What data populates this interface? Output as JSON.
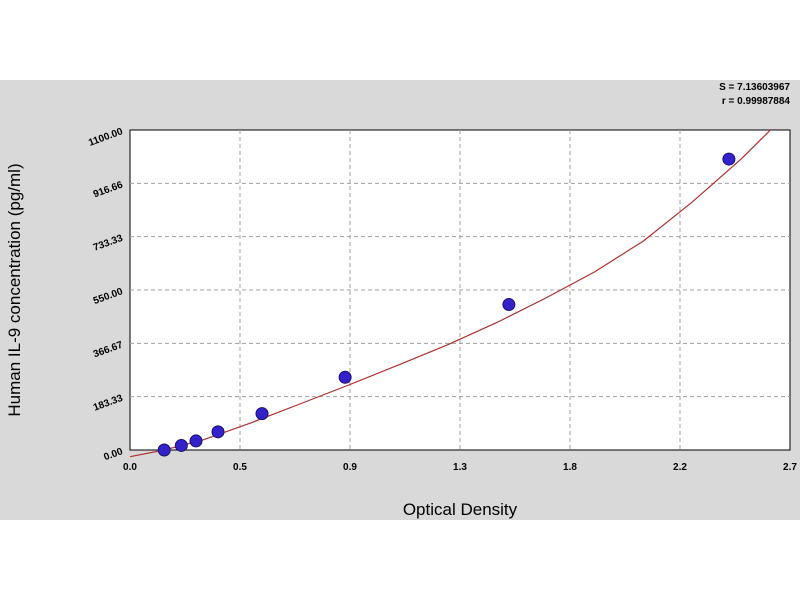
{
  "chart_data": {
    "type": "scatter",
    "xlabel": "Optical Density",
    "ylabel": "Human IL-9 concentration (pg/ml)",
    "xlim": [
      0.0,
      2.7
    ],
    "ylim": [
      0.0,
      1100.0
    ],
    "x_ticks": [
      "0.0",
      "0.5",
      "0.9",
      "1.3",
      "1.8",
      "2.2",
      "2.7"
    ],
    "y_ticks": [
      "0.00",
      "183.33",
      "366.67",
      "550.00",
      "733.33",
      "916.66",
      "1100.00"
    ],
    "grid": true,
    "stats": [
      "S = 7.13603967",
      "r = 0.99987884"
    ],
    "series": [
      {
        "points": [
          {
            "x": 0.14,
            "y": 0
          },
          {
            "x": 0.21,
            "y": 15.6
          },
          {
            "x": 0.27,
            "y": 31.2
          },
          {
            "x": 0.36,
            "y": 62.5
          },
          {
            "x": 0.54,
            "y": 125
          },
          {
            "x": 0.88,
            "y": 250
          },
          {
            "x": 1.55,
            "y": 500
          },
          {
            "x": 2.45,
            "y": 1000
          }
        ]
      }
    ],
    "fit_curve": {
      "x": [
        0.0,
        0.14,
        0.3,
        0.5,
        0.7,
        0.9,
        1.1,
        1.3,
        1.5,
        1.7,
        1.9,
        2.1,
        2.3,
        2.5,
        2.62
      ],
      "y": [
        -23,
        0,
        35,
        95,
        160,
        225,
        293,
        362,
        438,
        522,
        612,
        718,
        852,
        1000,
        1100
      ]
    },
    "colors": {
      "point_fill": "#3322cc",
      "point_edge": "#1a1066",
      "curve": "#b03030",
      "grid": "#a0a0a0",
      "band": "#d9d9d9"
    }
  }
}
